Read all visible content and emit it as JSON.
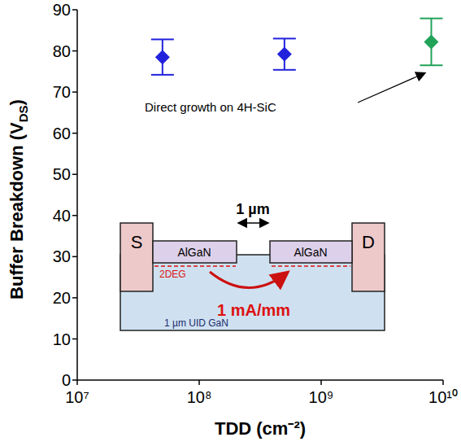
{
  "chart_data": {
    "type": "scatter",
    "xlabel": "TDD (cm⁻²)",
    "ylabel": "Buffer Breakdown (VDS)",
    "x": [
      50000000,
      500000000,
      8000000000
    ],
    "values": [
      78.5,
      79.2,
      82.2
    ],
    "errors": [
      4.3,
      3.8,
      5.7
    ],
    "colors": [
      "#2222dd",
      "#2222dd",
      "#22a35a"
    ],
    "marker": "diamond",
    "log": "x",
    "xlim": [
      10000000,
      10000000000
    ],
    "xticks": [
      {
        "value": 10000000,
        "label": "10⁷"
      },
      {
        "value": 100000000,
        "label": "10⁸"
      },
      {
        "value": 1000000000,
        "label": "10⁹"
      },
      {
        "value": 10000000000,
        "label": "10¹⁰"
      }
    ],
    "ylim": [
      0,
      90
    ],
    "yticks": [
      0,
      10,
      20,
      30,
      40,
      50,
      60,
      70,
      80,
      90
    ],
    "grid": false,
    "annotations": [
      "Direct growth on 4H-SiC"
    ],
    "inset": {
      "source": "S",
      "drain": "D",
      "barrier": "AlGaN",
      "spacing": "1 µm",
      "channel": "2DEG",
      "leakage": "1 mA/mm",
      "buffer": "1 µm UID GaN"
    }
  }
}
